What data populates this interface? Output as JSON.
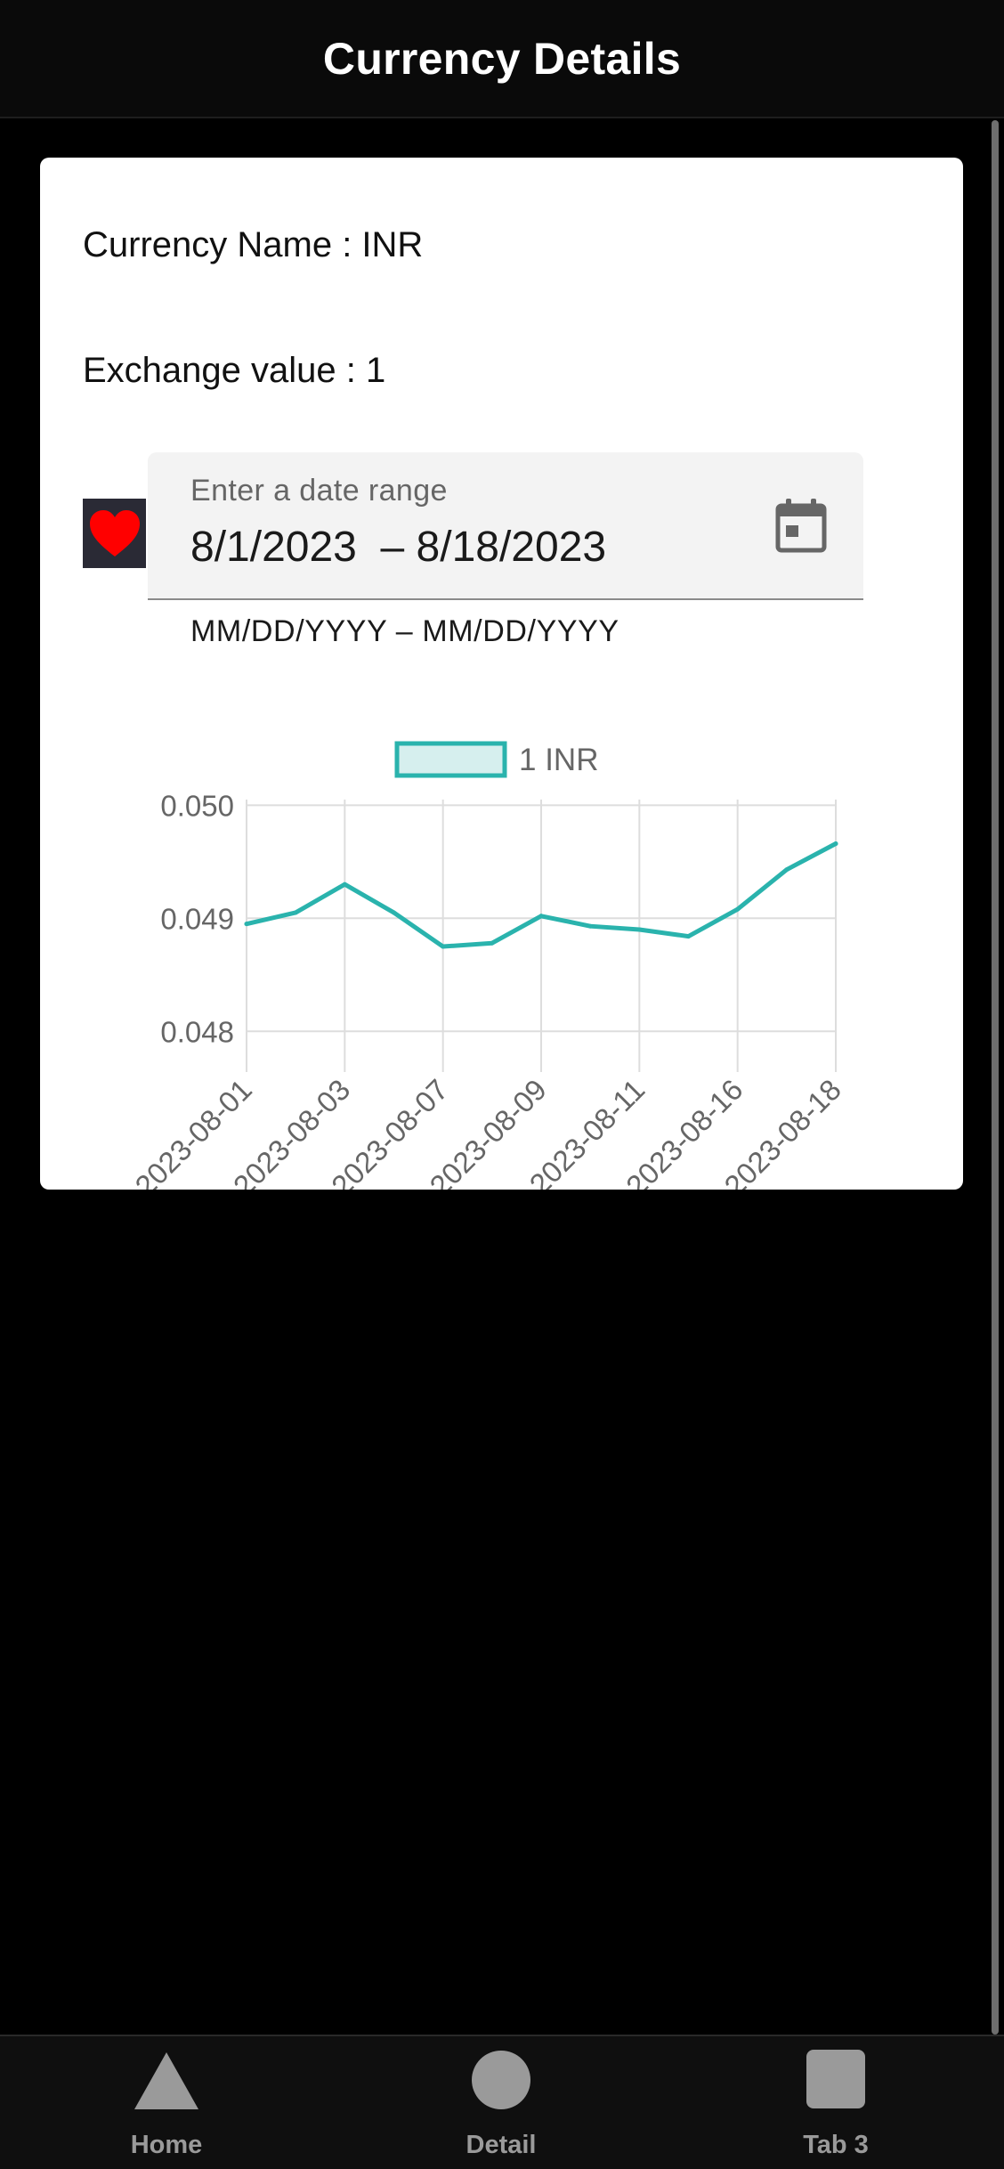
{
  "header": {
    "title": "Currency Details"
  },
  "details": {
    "currency_name_label": "Currency Name : INR",
    "exchange_value_label": "Exchange value : 1"
  },
  "date_range": {
    "label": "Enter a date range",
    "start": "8/1/2023",
    "end": "8/18/2023",
    "display": "8/1/2023  – 8/18/2023",
    "hint": "MM/DD/YYYY – MM/DD/YYYY"
  },
  "favorite": {
    "icon": "heart-icon",
    "color": "#ff0000"
  },
  "chart_data": {
    "type": "line",
    "legend": [
      "1 INR"
    ],
    "series": [
      {
        "name": "1 INR",
        "color": "#2ab3ad",
        "values": [
          0.04895,
          0.04905,
          0.0493,
          0.04905,
          0.04875,
          0.04878,
          0.04902,
          0.04893,
          0.0489,
          0.04884,
          0.04908,
          0.04943,
          0.04966
        ]
      }
    ],
    "x_tick_labels": [
      "2023-08-01",
      "2023-08-03",
      "2023-08-07",
      "2023-08-09",
      "2023-08-11",
      "2023-08-16",
      "2023-08-18"
    ],
    "y_tick_labels": [
      "0.050",
      "0.049",
      "0.048"
    ],
    "ylim": [
      0.04775,
      0.05005
    ],
    "grid": true
  },
  "nav": {
    "items": [
      {
        "label": "Home",
        "icon": "triangle-icon"
      },
      {
        "label": "Detail",
        "icon": "circle-icon"
      },
      {
        "label": "Tab 3",
        "icon": "square-icon"
      }
    ],
    "color": "#9a9a9a"
  }
}
